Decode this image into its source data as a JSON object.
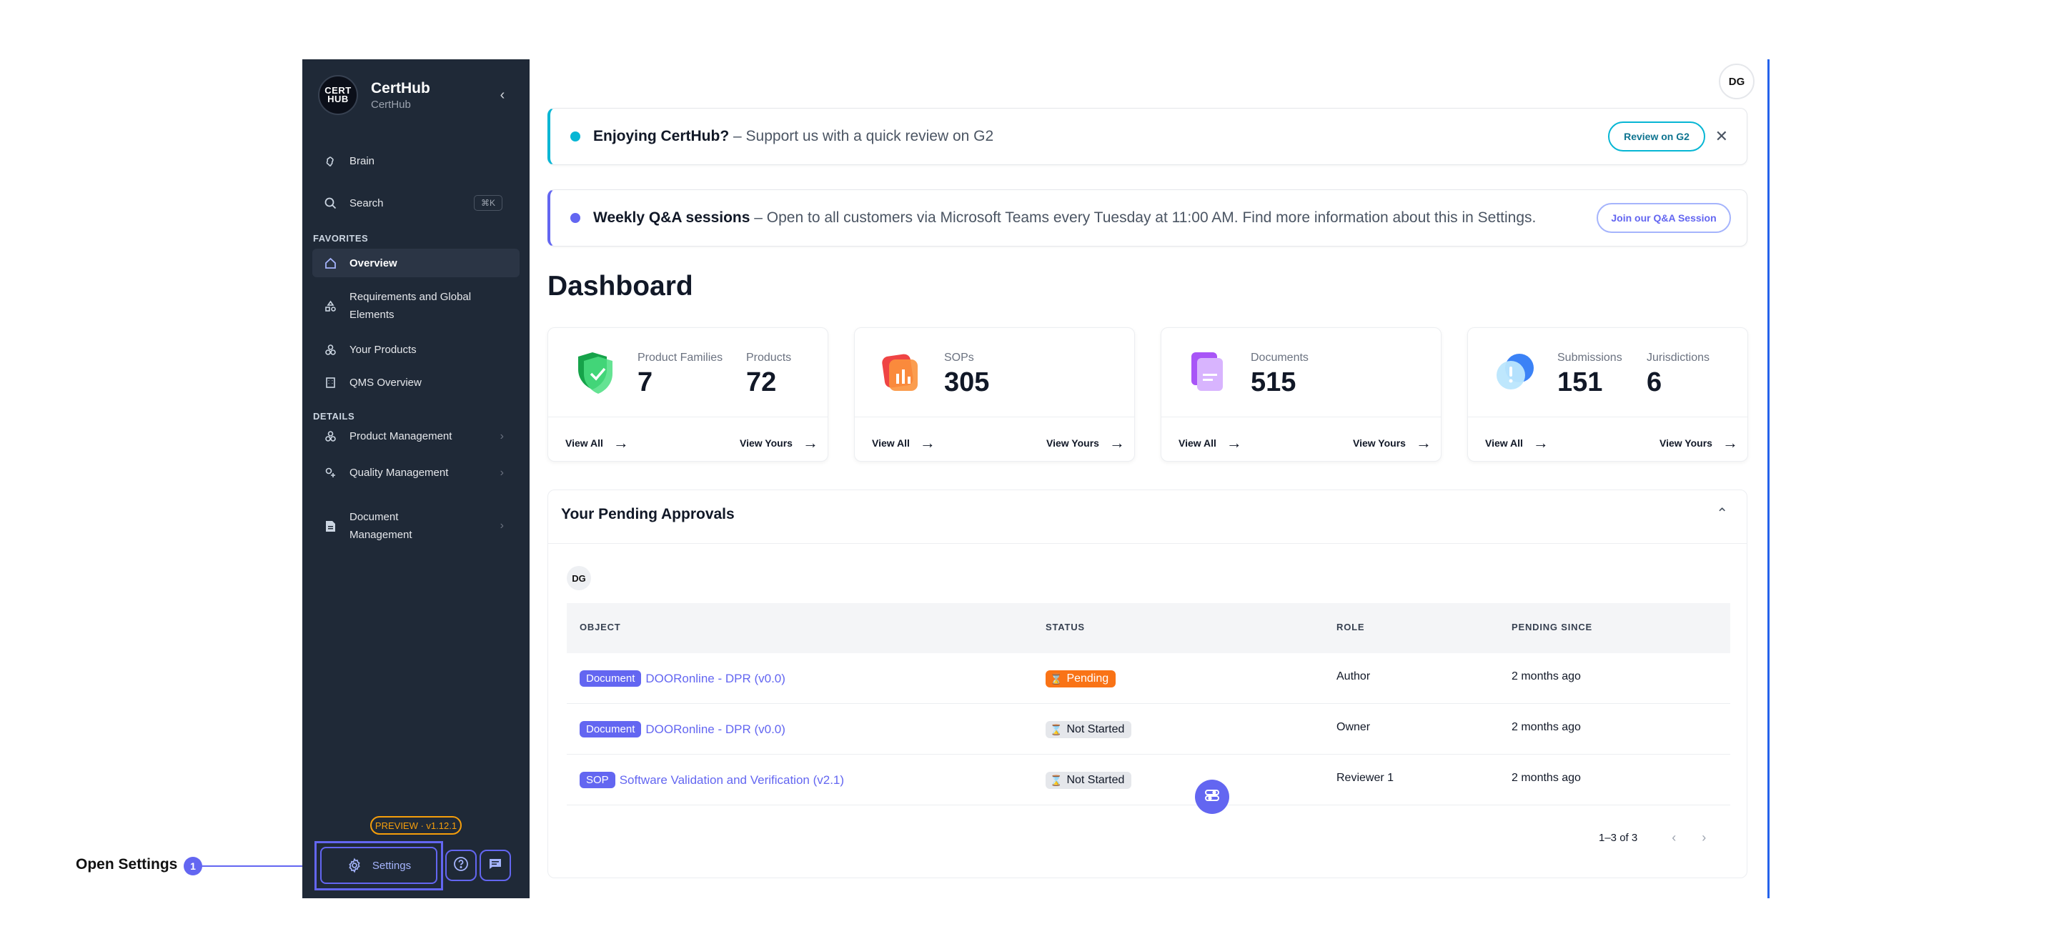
{
  "annotation": {
    "label": "Open Settings",
    "badge": "1"
  },
  "brand": {
    "logo_text": "CERT HUB",
    "name": "CertHub",
    "subtitle": "CertHub"
  },
  "sidebar": {
    "brain": "Brain",
    "search": "Search",
    "search_shortcut": "⌘K",
    "favorites_label": "FAVORITES",
    "overview": "Overview",
    "requirements": "Requirements and Global Elements",
    "your_products": "Your Products",
    "qms_overview": "QMS Overview",
    "details_label": "DETAILS",
    "product_management": "Product Management",
    "quality_management": "Quality Management",
    "document_management": "Document Management",
    "preview_badge": "PREVIEW · v1.12.1",
    "settings": "Settings"
  },
  "user": {
    "initials": "DG"
  },
  "banners": {
    "review": {
      "bold": "Enjoying CertHub?",
      "text": " – Support us with a quick review on G2",
      "button": "Review on G2",
      "close": "✕",
      "accent": "#06b6d4"
    },
    "qa": {
      "bold": "Weekly Q&A sessions",
      "text": " – Open to all customers via Microsoft Teams every Tuesday at 11:00 AM. Find more information about this in Settings.",
      "button": "Join our Q&A Session",
      "accent": "#6366f1"
    }
  },
  "dashboard": {
    "title": "Dashboard",
    "cards": [
      {
        "stats": [
          {
            "label": "Product Families",
            "value": "7"
          },
          {
            "label": "Products",
            "value": "72"
          }
        ],
        "view_all": "View All",
        "view_yours": "View Yours"
      },
      {
        "stats": [
          {
            "label": "SOPs",
            "value": "305"
          }
        ],
        "view_all": "View All",
        "view_yours": "View Yours"
      },
      {
        "stats": [
          {
            "label": "Documents",
            "value": "515"
          }
        ],
        "view_all": "View All",
        "view_yours": "View Yours"
      },
      {
        "stats": [
          {
            "label": "Submissions",
            "value": "151"
          },
          {
            "label": "Jurisdictions",
            "value": "6"
          }
        ],
        "view_all": "View All",
        "view_yours": "View Yours"
      }
    ]
  },
  "approvals": {
    "title": "Your Pending Approvals",
    "filter_avatar": "DG",
    "columns": [
      "OBJECT",
      "STATUS",
      "ROLE",
      "PENDING SINCE"
    ],
    "rows": [
      {
        "type": "Document",
        "name": "DOORonline - DPR (v0.0)",
        "status": "Pending",
        "role": "Author",
        "since": "2 months ago"
      },
      {
        "type": "Document",
        "name": "DOORonline - DPR (v0.0)",
        "status": "Not Started",
        "role": "Owner",
        "since": "2 months ago"
      },
      {
        "type": "SOP",
        "name": "Software Validation and Verification (v2.1)",
        "status": "Not Started",
        "role": "Reviewer 1",
        "since": "2 months ago"
      }
    ],
    "pagination": "1–3 of 3"
  }
}
